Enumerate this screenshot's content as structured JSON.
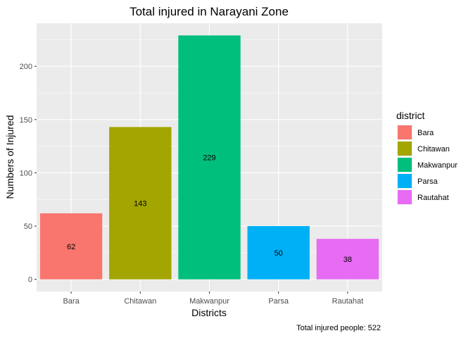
{
  "chart_data": {
    "type": "bar",
    "title": "Total injured in Narayani Zone",
    "xlabel": "Districts",
    "ylabel": "Numbers of Injured",
    "categories": [
      "Bara",
      "Chitawan",
      "Makwanpur",
      "Parsa",
      "Rautahat"
    ],
    "values": [
      62,
      143,
      229,
      50,
      38
    ],
    "colors": [
      "#F8766D",
      "#A3A500",
      "#00BF7D",
      "#00B0F6",
      "#E76BF3"
    ],
    "ylim": [
      -11.45,
      240.45
    ],
    "yticks": [
      0,
      50,
      100,
      150,
      200
    ],
    "grid": true,
    "legend": {
      "title": "district",
      "position": "right",
      "entries": [
        "Bara",
        "Chitawan",
        "Makwanpur",
        "Parsa",
        "Rautahat"
      ]
    },
    "caption": "Total injured people: 522"
  }
}
